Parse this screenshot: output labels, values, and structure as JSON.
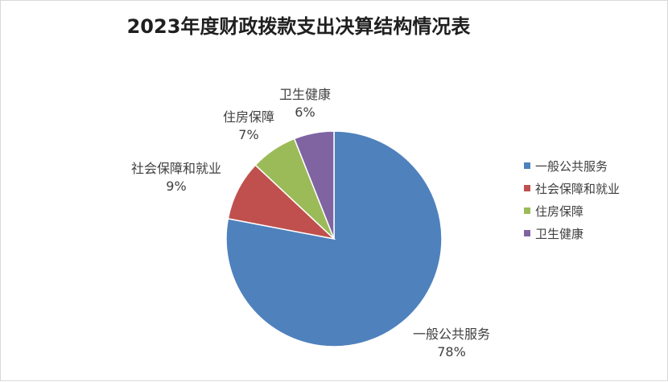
{
  "chart_data": {
    "type": "pie",
    "title": "2023年度财政拨款支出决算结构情况表",
    "categories": [
      "一般公共服务",
      "社会保障和就业",
      "住房保障",
      "卫生健康"
    ],
    "values": [
      78,
      9,
      7,
      6
    ],
    "percent_labels": [
      "78%",
      "9%",
      "7%",
      "6%"
    ],
    "colors": [
      "#4f81bd",
      "#c0504d",
      "#9bbb59",
      "#8064a2"
    ],
    "legend": {
      "position": "right"
    },
    "start_angle_deg": 0,
    "direction": "clockwise"
  }
}
